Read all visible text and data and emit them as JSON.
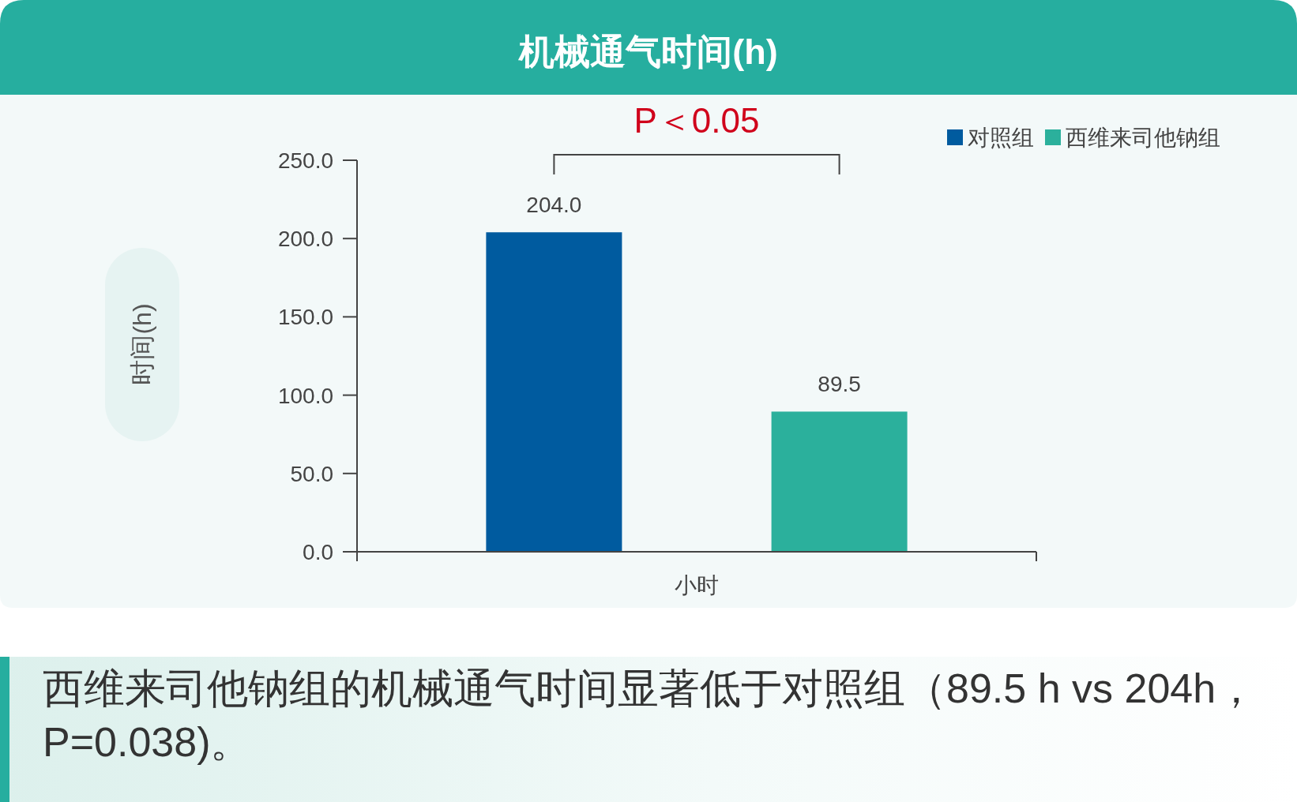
{
  "chart_data": {
    "type": "bar",
    "title": "机械通气时间(h)",
    "ylabel": "时间(h)",
    "categories": [
      "小时"
    ],
    "series": [
      {
        "name": "对照组",
        "color": "#005b9f",
        "values": [
          204.0
        ],
        "value_labels": [
          "204.0"
        ]
      },
      {
        "name": "西维来司他钠组",
        "color": "#2bb09c",
        "values": [
          89.5
        ],
        "value_labels": [
          "89.5"
        ]
      }
    ],
    "ylim": [
      0,
      250
    ],
    "yticks": [
      {
        "value": 0,
        "label": "0.0"
      },
      {
        "value": 50,
        "label": "50.0"
      },
      {
        "value": 100,
        "label": "100.0"
      },
      {
        "value": 150,
        "label": "150.0"
      },
      {
        "value": 200,
        "label": "200.0"
      },
      {
        "value": 250,
        "label": "250.0"
      }
    ],
    "legend": "top right",
    "annotations": [
      "P＜0.05",
      "西维来司他钠组的机械通气时间显著低于对照组（89.5 h vs 204h，P=0.038)。"
    ]
  }
}
